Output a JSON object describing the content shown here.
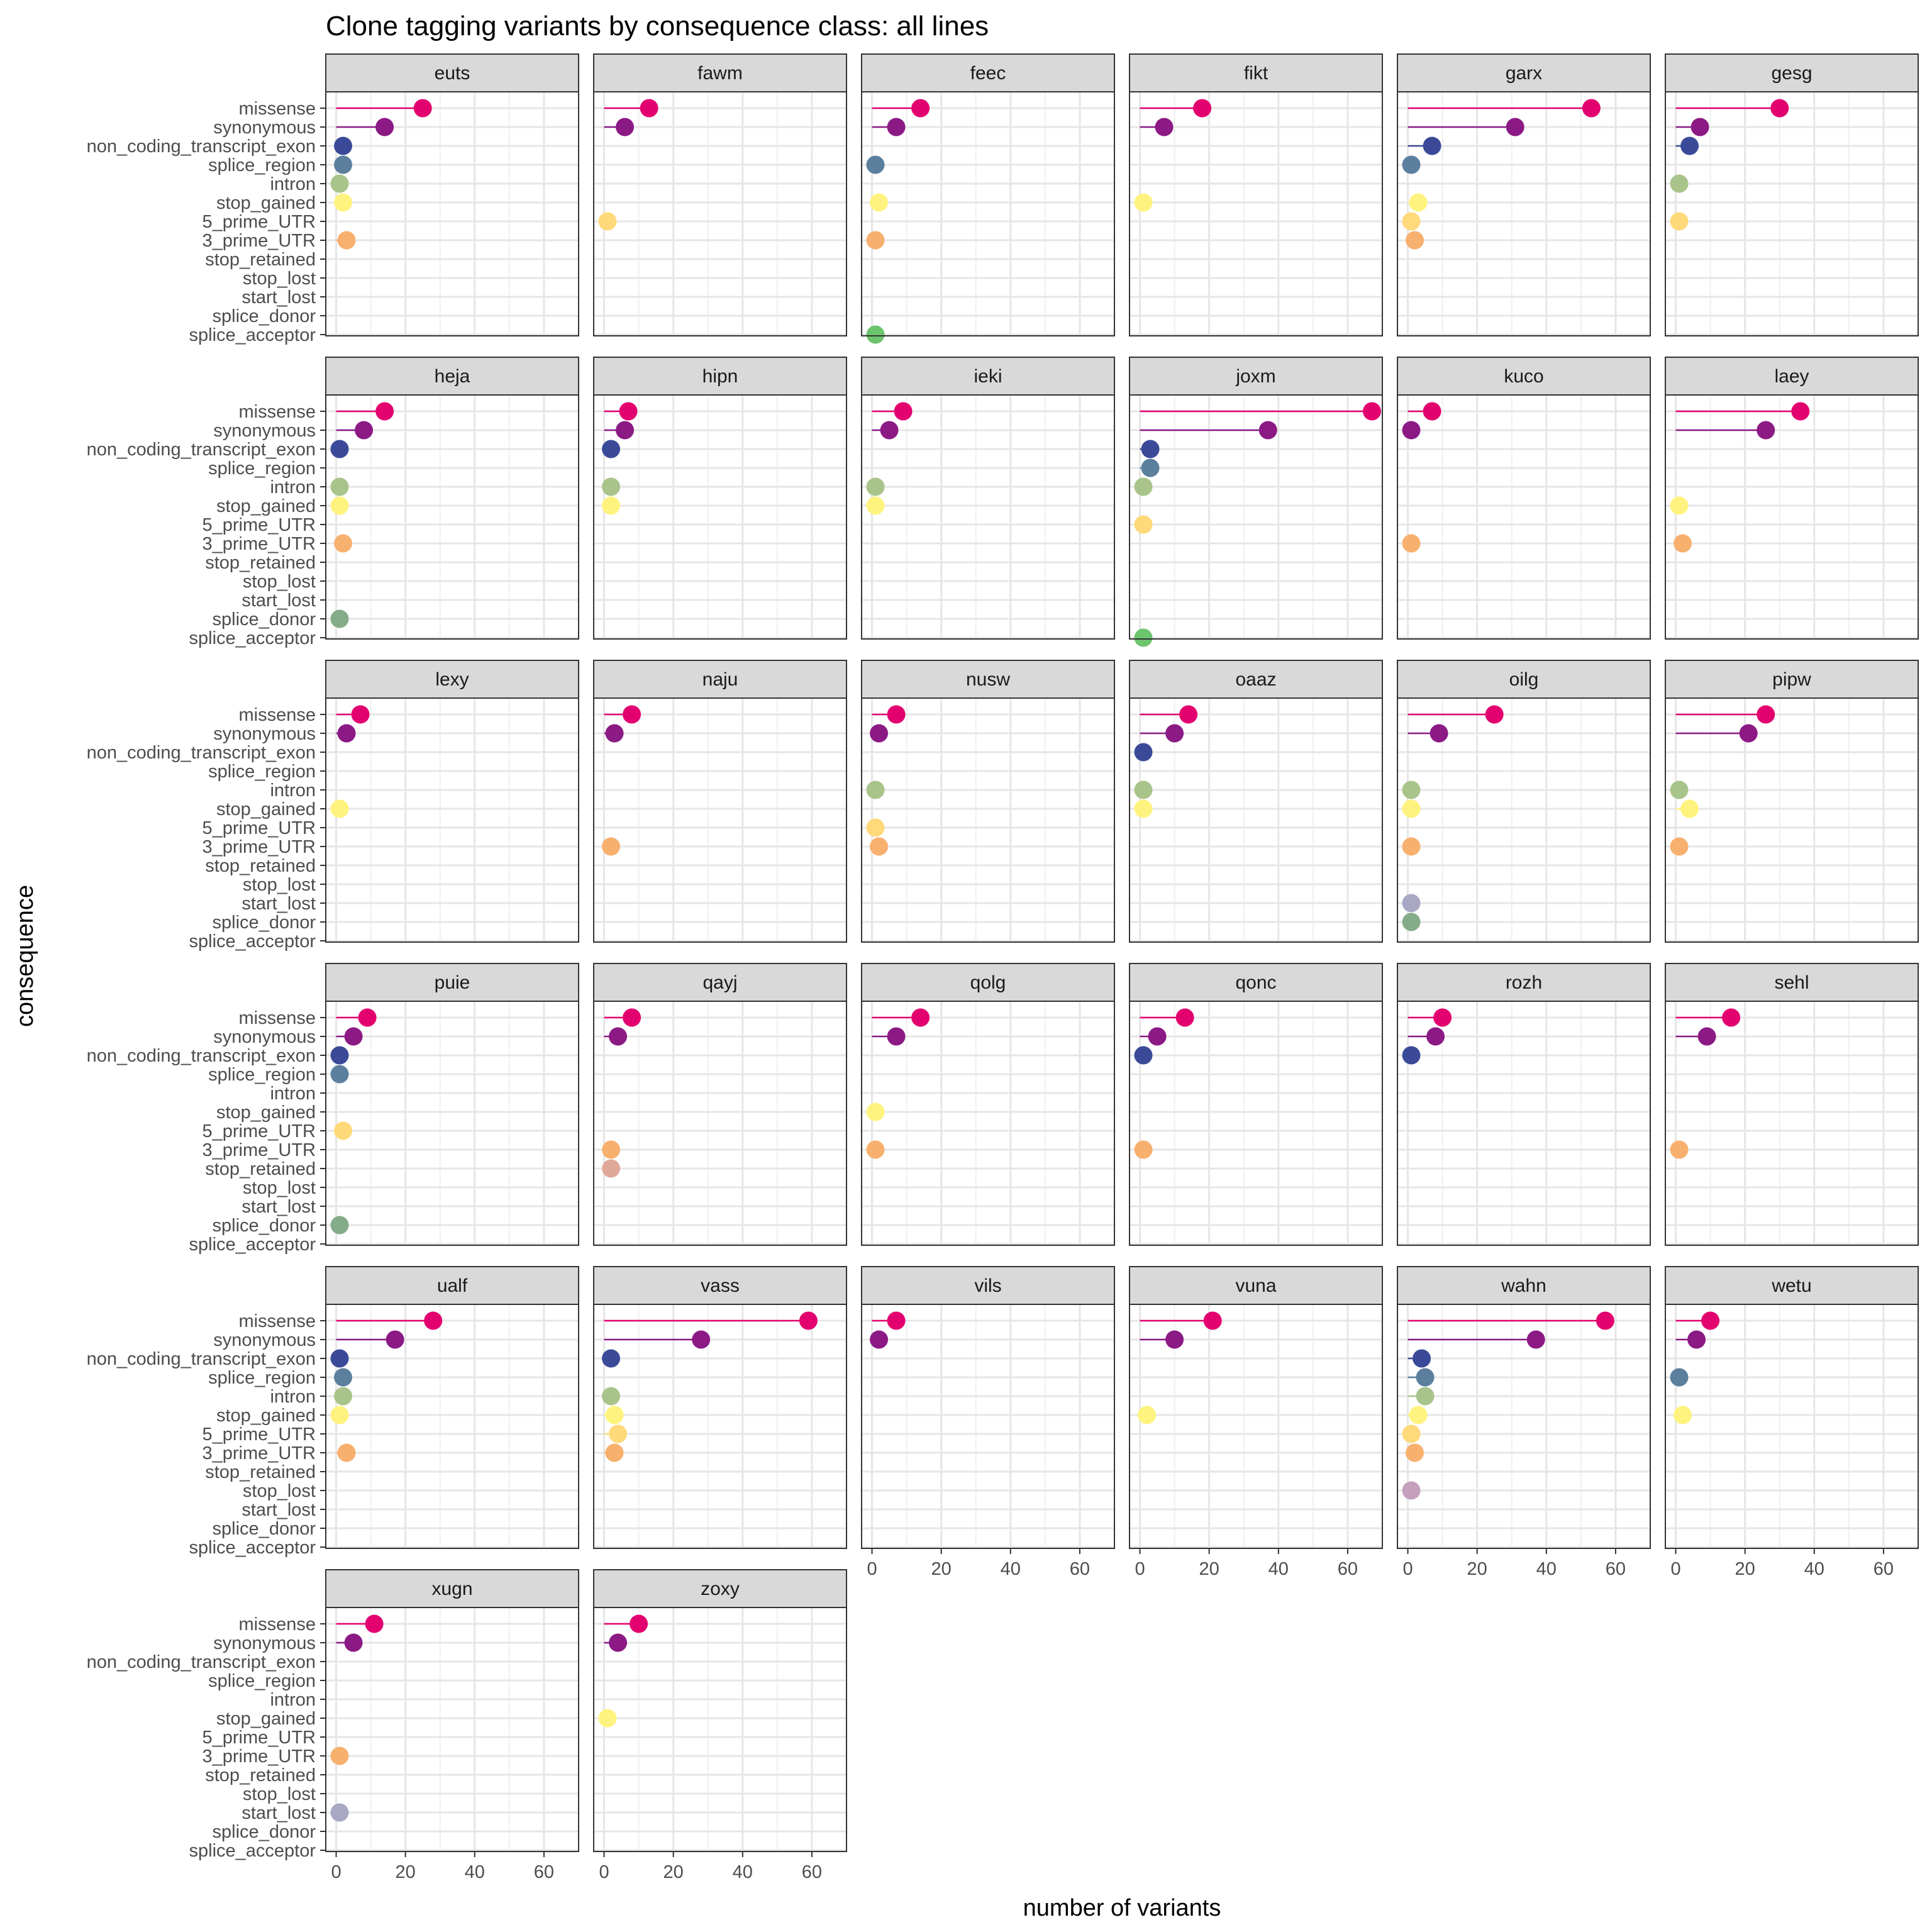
{
  "chart_data": {
    "type": "lollipop",
    "title": "Clone tagging variants by consequence class: all lines",
    "xlabel": "number of variants",
    "ylabel": "consequence",
    "xlim": [
      -3,
      70
    ],
    "xticks": [
      0,
      20,
      40,
      60
    ],
    "grid": true,
    "categories": [
      "missense",
      "synonymous",
      "non_coding_transcript_exon",
      "splice_region",
      "intron",
      "stop_gained",
      "5_prime_UTR",
      "3_prime_UTR",
      "stop_retained",
      "stop_lost",
      "start_lost",
      "splice_donor",
      "splice_acceptor"
    ],
    "colors": {
      "missense": "#e3006f",
      "synonymous": "#8b1a85",
      "non_coding_transcript_exon": "#3b4a98",
      "splice_region": "#5b7f9c",
      "intron": "#a9c48a",
      "stop_gained": "#fff37f",
      "5_prime_UTR": "#ffd97a",
      "3_prime_UTR": "#f8b06e",
      "stop_retained": "#e0a898",
      "stop_lost": "#c4a0bc",
      "start_lost": "#a8a8c4",
      "splice_donor": "#84ac88",
      "splice_acceptor": "#6cc46c"
    },
    "panels": [
      {
        "name": "euts",
        "values": {
          "missense": 25,
          "synonymous": 14,
          "non_coding_transcript_exon": 2,
          "splice_region": 2,
          "intron": 1,
          "stop_gained": 2,
          "3_prime_UTR": 3
        }
      },
      {
        "name": "fawm",
        "values": {
          "missense": 13,
          "synonymous": 6,
          "5_prime_UTR": 1
        }
      },
      {
        "name": "feec",
        "values": {
          "missense": 14,
          "synonymous": 7,
          "splice_region": 1,
          "stop_gained": 2,
          "3_prime_UTR": 1,
          "splice_acceptor": 1
        }
      },
      {
        "name": "fikt",
        "values": {
          "missense": 18,
          "synonymous": 7,
          "stop_gained": 1
        }
      },
      {
        "name": "garx",
        "values": {
          "missense": 53,
          "synonymous": 31,
          "non_coding_transcript_exon": 7,
          "splice_region": 1,
          "stop_gained": 3,
          "5_prime_UTR": 1,
          "3_prime_UTR": 2
        }
      },
      {
        "name": "gesg",
        "values": {
          "missense": 30,
          "synonymous": 7,
          "non_coding_transcript_exon": 4,
          "intron": 1,
          "5_prime_UTR": 1
        }
      },
      {
        "name": "heja",
        "values": {
          "missense": 14,
          "synonymous": 8,
          "non_coding_transcript_exon": 1,
          "intron": 1,
          "stop_gained": 1,
          "3_prime_UTR": 2,
          "splice_donor": 1
        }
      },
      {
        "name": "hipn",
        "values": {
          "missense": 7,
          "synonymous": 6,
          "non_coding_transcript_exon": 2,
          "intron": 2,
          "stop_gained": 2
        }
      },
      {
        "name": "ieki",
        "values": {
          "missense": 9,
          "synonymous": 5,
          "intron": 1,
          "stop_gained": 1
        }
      },
      {
        "name": "joxm",
        "values": {
          "missense": 67,
          "synonymous": 37,
          "non_coding_transcript_exon": 3,
          "splice_region": 3,
          "intron": 1,
          "5_prime_UTR": 1,
          "splice_acceptor": 1
        }
      },
      {
        "name": "kuco",
        "values": {
          "missense": 7,
          "synonymous": 1,
          "3_prime_UTR": 1
        }
      },
      {
        "name": "laey",
        "values": {
          "missense": 36,
          "synonymous": 26,
          "stop_gained": 1,
          "3_prime_UTR": 2
        }
      },
      {
        "name": "lexy",
        "values": {
          "missense": 7,
          "synonymous": 3,
          "stop_gained": 1
        }
      },
      {
        "name": "naju",
        "values": {
          "missense": 8,
          "synonymous": 3,
          "3_prime_UTR": 2
        }
      },
      {
        "name": "nusw",
        "values": {
          "missense": 7,
          "synonymous": 2,
          "intron": 1,
          "5_prime_UTR": 1,
          "3_prime_UTR": 2
        }
      },
      {
        "name": "oaaz",
        "values": {
          "missense": 14,
          "synonymous": 10,
          "non_coding_transcript_exon": 1,
          "intron": 1,
          "stop_gained": 1
        }
      },
      {
        "name": "oilg",
        "values": {
          "missense": 25,
          "synonymous": 9,
          "intron": 1,
          "stop_gained": 1,
          "3_prime_UTR": 1,
          "start_lost": 1,
          "splice_donor": 1
        }
      },
      {
        "name": "pipw",
        "values": {
          "missense": 26,
          "synonymous": 21,
          "intron": 1,
          "stop_gained": 4,
          "3_prime_UTR": 1
        }
      },
      {
        "name": "puie",
        "values": {
          "missense": 9,
          "synonymous": 5,
          "non_coding_transcript_exon": 1,
          "splice_region": 1,
          "5_prime_UTR": 2,
          "splice_donor": 1
        }
      },
      {
        "name": "qayj",
        "values": {
          "missense": 8,
          "synonymous": 4,
          "3_prime_UTR": 2,
          "stop_retained": 2
        }
      },
      {
        "name": "qolg",
        "values": {
          "missense": 14,
          "synonymous": 7,
          "stop_gained": 1,
          "3_prime_UTR": 1
        }
      },
      {
        "name": "qonc",
        "values": {
          "missense": 13,
          "synonymous": 5,
          "non_coding_transcript_exon": 1,
          "3_prime_UTR": 1
        }
      },
      {
        "name": "rozh",
        "values": {
          "missense": 10,
          "synonymous": 8,
          "non_coding_transcript_exon": 1
        }
      },
      {
        "name": "sehl",
        "values": {
          "missense": 16,
          "synonymous": 9,
          "3_prime_UTR": 1
        }
      },
      {
        "name": "ualf",
        "values": {
          "missense": 28,
          "synonymous": 17,
          "non_coding_transcript_exon": 1,
          "splice_region": 2,
          "intron": 2,
          "stop_gained": 1,
          "3_prime_UTR": 3
        }
      },
      {
        "name": "vass",
        "values": {
          "missense": 59,
          "synonymous": 28,
          "non_coding_transcript_exon": 2,
          "intron": 2,
          "stop_gained": 3,
          "5_prime_UTR": 4,
          "3_prime_UTR": 3
        }
      },
      {
        "name": "vils",
        "values": {
          "missense": 7,
          "synonymous": 2
        }
      },
      {
        "name": "vuna",
        "values": {
          "missense": 21,
          "synonymous": 10,
          "stop_gained": 2
        }
      },
      {
        "name": "wahn",
        "values": {
          "missense": 57,
          "synonymous": 37,
          "non_coding_transcript_exon": 4,
          "splice_region": 5,
          "intron": 5,
          "stop_gained": 3,
          "5_prime_UTR": 1,
          "3_prime_UTR": 2,
          "stop_lost": 1
        }
      },
      {
        "name": "wetu",
        "values": {
          "missense": 10,
          "synonymous": 6,
          "splice_region": 1,
          "stop_gained": 2
        }
      },
      {
        "name": "xugn",
        "values": {
          "missense": 11,
          "synonymous": 5,
          "3_prime_UTR": 1,
          "start_lost": 1
        }
      },
      {
        "name": "zoxy",
        "values": {
          "missense": 10,
          "synonymous": 4,
          "stop_gained": 1
        }
      }
    ]
  }
}
